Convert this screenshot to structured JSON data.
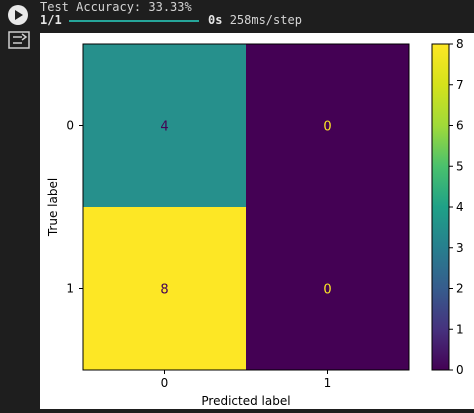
{
  "output": {
    "line1": "Test Accuracy: 33.33%",
    "progress_label": "1/1",
    "time_label": "0s",
    "step_label": "258ms/step",
    "progress_fraction": 1.0
  },
  "icons": {
    "run": "play-icon",
    "output_toggle": "output-toggle-icon"
  },
  "chart_data": {
    "type": "heatmap",
    "title": "",
    "xlabel": "Predicted label",
    "ylabel": "True label",
    "x_ticks": [
      "0",
      "1"
    ],
    "y_ticks": [
      "0",
      "1"
    ],
    "matrix": [
      [
        4,
        0
      ],
      [
        8,
        0
      ]
    ],
    "colormap": "viridis",
    "colorbar": {
      "min": 0,
      "max": 8,
      "ticks": [
        "0",
        "1",
        "2",
        "3",
        "4",
        "5",
        "6",
        "7",
        "8"
      ]
    },
    "cell_colors": [
      [
        "#26908c",
        "#440154"
      ],
      [
        "#fde725",
        "#440154"
      ]
    ],
    "text_colors": [
      [
        "#440154",
        "#fde725"
      ],
      [
        "#440154",
        "#fde725"
      ]
    ]
  }
}
